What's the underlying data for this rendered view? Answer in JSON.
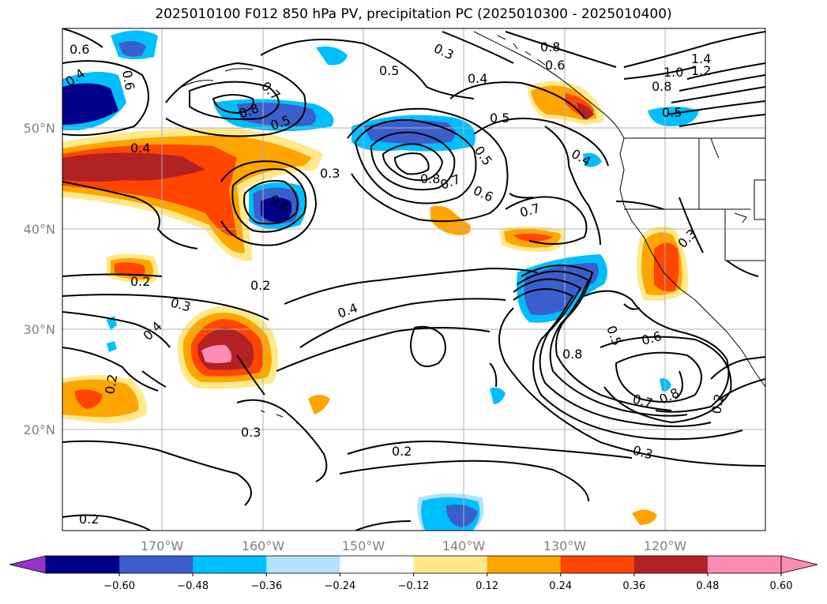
{
  "title": "2025010100 F012 850 hPa PV, precipitation PC (2025010300 - 2025010400)",
  "lat_labels": [
    "50°N",
    "40°N",
    "30°N",
    "20°N"
  ],
  "lon_labels": [
    "170°W",
    "160°W",
    "150°W",
    "140°W",
    "130°W",
    "120°W"
  ],
  "colorbar": {
    "ticks": [
      "−0.60",
      "−0.48",
      "−0.36",
      "−0.24",
      "−0.12",
      "0.12",
      "0.24",
      "0.36",
      "0.48",
      "0.60"
    ],
    "colors": {
      "under": "#9932cc",
      "bins": [
        "#00008b",
        "#3a5fcd",
        "#00bfff",
        "#b0e2ff",
        "#ffffff",
        "#ffe98a",
        "#ffa500",
        "#ff4500",
        "#b22222",
        "#ff8cb4"
      ],
      "over": "#ff8cb4"
    }
  },
  "contour_labels": [
    "0.6",
    "0.4",
    "0.6",
    "0.3",
    "0.8",
    "0.6",
    "1.4",
    "1.2",
    "1.0",
    "0.8",
    "0.5",
    "0.4",
    "0.7",
    "0.8",
    "0.5",
    "0.5",
    "0.5",
    "0.5",
    "0.4",
    "0.3",
    "0.4",
    "0.6",
    "0.8",
    "0.7",
    "0.6",
    "0.7",
    "0.3",
    "0.2",
    "0.2",
    "0.3",
    "0.4",
    "0.4",
    "0.5",
    "0.6",
    "0.8",
    "0.2",
    "0.7",
    "0.8",
    "0.2",
    "0.3",
    "0.3",
    "0.2",
    "0.2"
  ]
}
